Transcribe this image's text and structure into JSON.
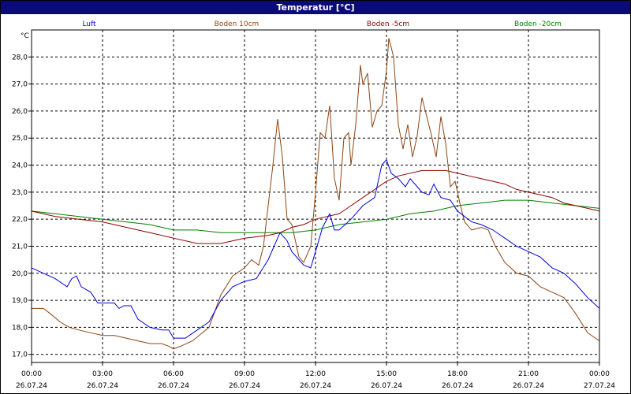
{
  "chart_data": {
    "type": "line",
    "title": "Temperatur [°C]",
    "ylabel": "°C",
    "xlabel": "",
    "ylim": [
      16.7,
      29.0
    ],
    "xlim": [
      0,
      24
    ],
    "grid": true,
    "legend_position": "top",
    "y_ticks": [
      "17,0",
      "18,0",
      "19,0",
      "20,0",
      "21,0",
      "22,0",
      "23,0",
      "24,0",
      "25,0",
      "26,0",
      "27,0",
      "28,0"
    ],
    "y_tick_values": [
      17,
      18,
      19,
      20,
      21,
      22,
      23,
      24,
      25,
      26,
      27,
      28
    ],
    "x_ticks": [
      {
        "time": "00:00",
        "date": "26.07.24"
      },
      {
        "time": "03:00",
        "date": "26.07.24"
      },
      {
        "time": "06:00",
        "date": "26.07.24"
      },
      {
        "time": "09:00",
        "date": "26.07.24"
      },
      {
        "time": "12:00",
        "date": "26.07.24"
      },
      {
        "time": "15:00",
        "date": "26.07.24"
      },
      {
        "time": "18:00",
        "date": "26.07.24"
      },
      {
        "time": "21:00",
        "date": "26.07.24"
      },
      {
        "time": "00:00",
        "date": "27.07.24"
      }
    ],
    "x_tick_hours": [
      0,
      3,
      6,
      9,
      12,
      15,
      18,
      21,
      24
    ],
    "series": [
      {
        "name": "Luft",
        "color": "#0000dd",
        "points": [
          [
            0,
            20.2
          ],
          [
            0.5,
            20.0
          ],
          [
            1,
            19.8
          ],
          [
            1.5,
            19.5
          ],
          [
            1.7,
            19.8
          ],
          [
            1.9,
            19.9
          ],
          [
            2.1,
            19.5
          ],
          [
            2.5,
            19.3
          ],
          [
            2.8,
            18.9
          ],
          [
            3.5,
            18.9
          ],
          [
            3.7,
            18.7
          ],
          [
            3.9,
            18.8
          ],
          [
            4.2,
            18.8
          ],
          [
            4.5,
            18.3
          ],
          [
            5,
            18.0
          ],
          [
            5.5,
            17.9
          ],
          [
            5.8,
            17.9
          ],
          [
            6,
            17.6
          ],
          [
            6.5,
            17.6
          ],
          [
            7,
            17.9
          ],
          [
            7.5,
            18.2
          ],
          [
            8,
            19.0
          ],
          [
            8.5,
            19.5
          ],
          [
            9,
            19.7
          ],
          [
            9.5,
            19.8
          ],
          [
            10,
            20.5
          ],
          [
            10.5,
            21.5
          ],
          [
            10.8,
            21.2
          ],
          [
            11,
            20.8
          ],
          [
            11.5,
            20.3
          ],
          [
            11.8,
            20.2
          ],
          [
            12,
            20.8
          ],
          [
            12.3,
            21.7
          ],
          [
            12.6,
            22.2
          ],
          [
            12.8,
            21.6
          ],
          [
            13,
            21.6
          ],
          [
            13.5,
            22.0
          ],
          [
            14,
            22.5
          ],
          [
            14.5,
            22.8
          ],
          [
            14.8,
            24.0
          ],
          [
            15.0,
            24.2
          ],
          [
            15.2,
            23.7
          ],
          [
            15.5,
            23.5
          ],
          [
            15.8,
            23.2
          ],
          [
            16,
            23.5
          ],
          [
            16.3,
            23.2
          ],
          [
            16.5,
            23.0
          ],
          [
            16.8,
            22.9
          ],
          [
            17,
            23.3
          ],
          [
            17.3,
            22.8
          ],
          [
            17.7,
            22.7
          ],
          [
            18,
            22.3
          ],
          [
            18.3,
            22.1
          ],
          [
            18.6,
            21.9
          ],
          [
            19,
            21.8
          ],
          [
            19.5,
            21.6
          ],
          [
            20,
            21.3
          ],
          [
            20.5,
            21.0
          ],
          [
            21,
            20.8
          ],
          [
            21.5,
            20.6
          ],
          [
            22,
            20.2
          ],
          [
            22.5,
            20.0
          ],
          [
            23,
            19.6
          ],
          [
            23.5,
            19.1
          ],
          [
            24,
            18.7
          ]
        ]
      },
      {
        "name": "Boden 10cm",
        "color": "#8b4513",
        "points": [
          [
            0,
            18.7
          ],
          [
            0.5,
            18.7
          ],
          [
            0.8,
            18.5
          ],
          [
            1.2,
            18.2
          ],
          [
            1.6,
            18.0
          ],
          [
            2,
            17.9
          ],
          [
            2.5,
            17.8
          ],
          [
            3,
            17.7
          ],
          [
            3.5,
            17.7
          ],
          [
            4,
            17.6
          ],
          [
            4.5,
            17.5
          ],
          [
            5,
            17.4
          ],
          [
            5.5,
            17.4
          ],
          [
            5.8,
            17.3
          ],
          [
            6,
            17.2
          ],
          [
            6.3,
            17.3
          ],
          [
            6.8,
            17.5
          ],
          [
            7.5,
            18.0
          ],
          [
            8,
            19.2
          ],
          [
            8.5,
            19.9
          ],
          [
            9,
            20.2
          ],
          [
            9.3,
            20.5
          ],
          [
            9.6,
            20.3
          ],
          [
            9.8,
            21.0
          ],
          [
            10.0,
            22.5
          ],
          [
            10.2,
            24.0
          ],
          [
            10.4,
            25.7
          ],
          [
            10.6,
            24.3
          ],
          [
            10.8,
            22.0
          ],
          [
            11.0,
            21.8
          ],
          [
            11.3,
            20.6
          ],
          [
            11.5,
            20.4
          ],
          [
            11.8,
            21.0
          ],
          [
            12.0,
            23.0
          ],
          [
            12.2,
            25.2
          ],
          [
            12.4,
            25.0
          ],
          [
            12.6,
            26.2
          ],
          [
            12.8,
            23.5
          ],
          [
            13.0,
            22.7
          ],
          [
            13.2,
            25.0
          ],
          [
            13.4,
            25.2
          ],
          [
            13.5,
            24.0
          ],
          [
            13.7,
            25.5
          ],
          [
            13.9,
            27.7
          ],
          [
            14.0,
            27.0
          ],
          [
            14.2,
            27.4
          ],
          [
            14.4,
            25.4
          ],
          [
            14.6,
            26.0
          ],
          [
            14.8,
            26.2
          ],
          [
            15.0,
            27.5
          ],
          [
            15.1,
            28.7
          ],
          [
            15.3,
            28.0
          ],
          [
            15.5,
            25.5
          ],
          [
            15.7,
            24.6
          ],
          [
            15.9,
            25.5
          ],
          [
            16.1,
            24.3
          ],
          [
            16.3,
            25.1
          ],
          [
            16.5,
            26.5
          ],
          [
            16.7,
            25.8
          ],
          [
            16.9,
            25.1
          ],
          [
            17.1,
            24.3
          ],
          [
            17.3,
            25.8
          ],
          [
            17.5,
            24.8
          ],
          [
            17.7,
            23.2
          ],
          [
            17.9,
            23.4
          ],
          [
            18.1,
            22.6
          ],
          [
            18.3,
            21.9
          ],
          [
            18.6,
            21.6
          ],
          [
            19,
            21.7
          ],
          [
            19.3,
            21.6
          ],
          [
            19.6,
            21.0
          ],
          [
            20,
            20.4
          ],
          [
            20.5,
            20.0
          ],
          [
            21,
            19.9
          ],
          [
            21.5,
            19.5
          ],
          [
            22,
            19.3
          ],
          [
            22.5,
            19.1
          ],
          [
            23,
            18.5
          ],
          [
            23.5,
            17.8
          ],
          [
            24,
            17.5
          ]
        ]
      },
      {
        "name": "Boden -5cm",
        "color": "#8b0000",
        "points": [
          [
            0,
            22.3
          ],
          [
            1,
            22.1
          ],
          [
            2,
            22.0
          ],
          [
            3,
            21.9
          ],
          [
            4,
            21.7
          ],
          [
            5,
            21.5
          ],
          [
            6,
            21.3
          ],
          [
            7,
            21.1
          ],
          [
            8,
            21.1
          ],
          [
            9,
            21.3
          ],
          [
            10,
            21.4
          ],
          [
            10.5,
            21.5
          ],
          [
            11,
            21.7
          ],
          [
            11.5,
            21.8
          ],
          [
            12,
            22.0
          ],
          [
            12.5,
            22.1
          ],
          [
            13,
            22.2
          ],
          [
            13.5,
            22.5
          ],
          [
            14,
            22.8
          ],
          [
            14.5,
            23.1
          ],
          [
            15,
            23.4
          ],
          [
            15.5,
            23.6
          ],
          [
            16,
            23.7
          ],
          [
            16.5,
            23.8
          ],
          [
            17,
            23.8
          ],
          [
            17.5,
            23.8
          ],
          [
            18,
            23.7
          ],
          [
            18.5,
            23.6
          ],
          [
            19,
            23.5
          ],
          [
            19.5,
            23.4
          ],
          [
            20,
            23.3
          ],
          [
            20.5,
            23.1
          ],
          [
            21,
            23.0
          ],
          [
            21.5,
            22.9
          ],
          [
            22,
            22.8
          ],
          [
            22.5,
            22.6
          ],
          [
            23,
            22.5
          ],
          [
            23.5,
            22.4
          ],
          [
            24,
            22.3
          ]
        ]
      },
      {
        "name": "Boden -20cm",
        "color": "#008000",
        "points": [
          [
            0,
            22.3
          ],
          [
            1,
            22.2
          ],
          [
            2,
            22.1
          ],
          [
            3,
            22.0
          ],
          [
            4,
            21.9
          ],
          [
            5,
            21.8
          ],
          [
            6,
            21.6
          ],
          [
            7,
            21.6
          ],
          [
            8,
            21.5
          ],
          [
            9,
            21.5
          ],
          [
            10,
            21.5
          ],
          [
            11,
            21.5
          ],
          [
            12,
            21.6
          ],
          [
            13,
            21.8
          ],
          [
            14,
            21.9
          ],
          [
            15,
            22.0
          ],
          [
            16,
            22.2
          ],
          [
            17,
            22.3
          ],
          [
            18,
            22.5
          ],
          [
            19,
            22.6
          ],
          [
            20,
            22.7
          ],
          [
            21,
            22.7
          ],
          [
            22,
            22.6
          ],
          [
            23,
            22.5
          ],
          [
            24,
            22.4
          ]
        ]
      }
    ]
  }
}
